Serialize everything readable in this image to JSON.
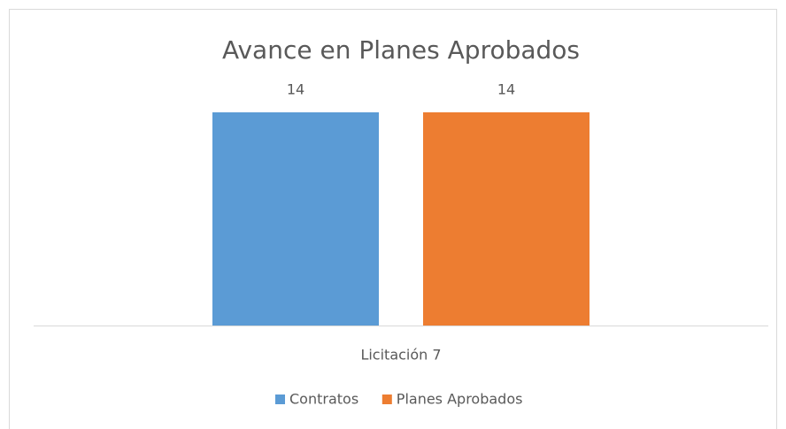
{
  "chart_data": {
    "type": "bar",
    "title": "Avance en Planes Aprobados",
    "categories": [
      "Licitación 7"
    ],
    "series": [
      {
        "name": "Contratos",
        "color": "#5b9bd5",
        "values": [
          14
        ]
      },
      {
        "name": "Planes Aprobados",
        "color": "#ed7d31",
        "values": [
          14
        ]
      }
    ]
  }
}
